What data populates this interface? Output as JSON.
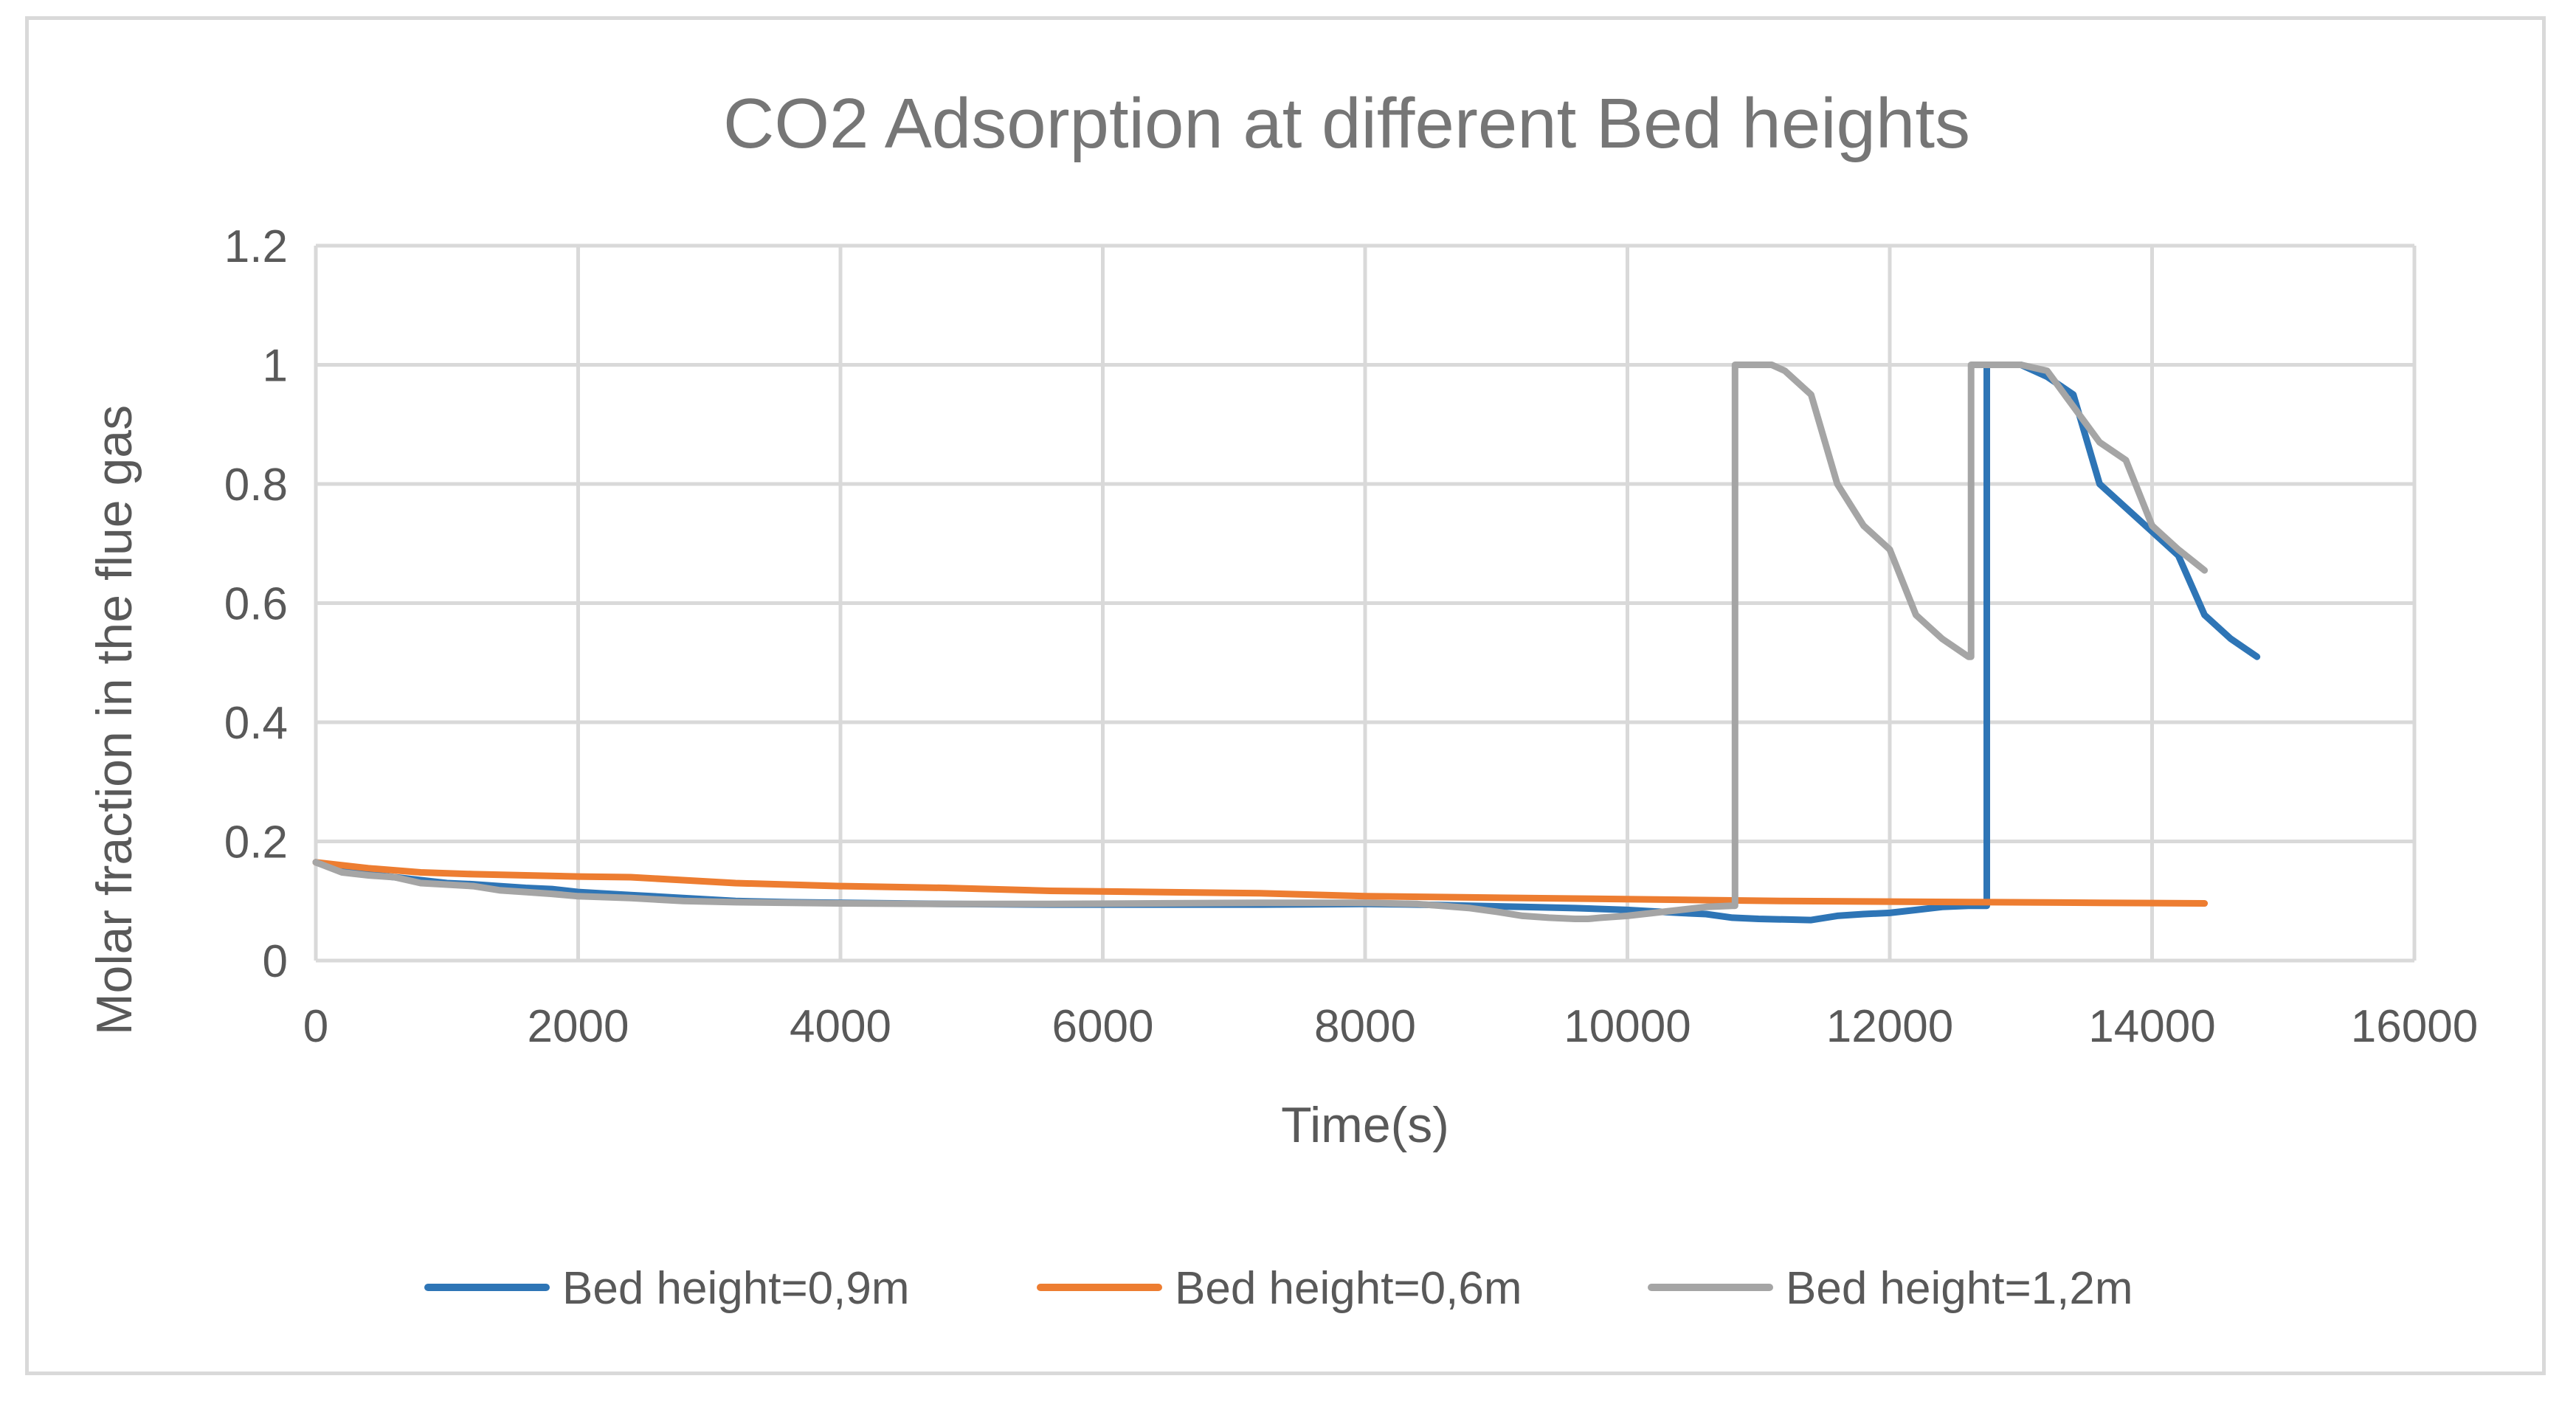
{
  "chart_data": {
    "type": "line",
    "title": "CO2 Adsorption at different Bed heights",
    "xlabel": "Time(s)",
    "ylabel": "Molar fraction in the flue gas",
    "xlim": [
      0,
      16000
    ],
    "ylim": [
      0,
      1.2
    ],
    "x_ticks": [
      "0",
      "2000",
      "4000",
      "6000",
      "8000",
      "10000",
      "12000",
      "14000",
      "16000"
    ],
    "y_ticks": [
      "0",
      "0.2",
      "0.4",
      "0.6",
      "0.8",
      "1",
      "1.2"
    ],
    "grid": true,
    "legend_position": "bottom",
    "series": [
      {
        "name": "Bed height=0,9m",
        "color": "#2e75b6",
        "x": [
          0,
          200,
          400,
          600,
          800,
          1000,
          1200,
          1400,
          1600,
          1800,
          2000,
          2400,
          2800,
          3200,
          3600,
          4000,
          4800,
          5600,
          6400,
          7200,
          8000,
          8400,
          8800,
          9200,
          9600,
          10000,
          10400,
          10600,
          10800,
          11000,
          11200,
          11400,
          11600,
          11800,
          12000,
          12200,
          12400,
          12600,
          12740,
          12740,
          12800,
          13000,
          13200,
          13400,
          13600,
          13800,
          14000,
          14200,
          14400,
          14600,
          14800
        ],
        "y": [
          0.165,
          0.15,
          0.145,
          0.14,
          0.135,
          0.13,
          0.128,
          0.125,
          0.122,
          0.12,
          0.115,
          0.11,
          0.105,
          0.1,
          0.098,
          0.097,
          0.095,
          0.094,
          0.094,
          0.094,
          0.095,
          0.094,
          0.092,
          0.09,
          0.088,
          0.085,
          0.08,
          0.078,
          0.072,
          0.07,
          0.069,
          0.068,
          0.075,
          0.078,
          0.08,
          0.085,
          0.09,
          0.092,
          0.092,
          1.0,
          1.0,
          1.0,
          0.98,
          0.95,
          0.8,
          0.76,
          0.72,
          0.68,
          0.58,
          0.54,
          0.51
        ]
      },
      {
        "name": "Bed height=0,6m",
        "color": "#ed7d31",
        "x": [
          0,
          400,
          800,
          1200,
          1600,
          2000,
          2400,
          2800,
          3200,
          4000,
          4800,
          5600,
          6400,
          7200,
          8000,
          8800,
          9600,
          10400,
          11200,
          12000,
          12800,
          13600,
          14400
        ],
        "y": [
          0.165,
          0.155,
          0.148,
          0.145,
          0.143,
          0.141,
          0.14,
          0.135,
          0.13,
          0.125,
          0.122,
          0.117,
          0.115,
          0.113,
          0.108,
          0.106,
          0.104,
          0.102,
          0.1,
          0.099,
          0.098,
          0.097,
          0.096
        ]
      },
      {
        "name": "Bed height=1,2m",
        "color": "#a5a5a5",
        "x": [
          0,
          200,
          400,
          600,
          800,
          1200,
          1400,
          1600,
          1800,
          2000,
          2400,
          2800,
          3200,
          4000,
          4800,
          5600,
          6400,
          7200,
          8000,
          8400,
          8800,
          9000,
          9200,
          9400,
          9600,
          9700,
          9800,
          10000,
          10200,
          10400,
          10600,
          10800,
          10820,
          10820,
          11000,
          11100,
          11200,
          11400,
          11600,
          11800,
          12000,
          12200,
          12400,
          12500,
          12600,
          12620,
          12620,
          12800,
          13000,
          13200,
          13400,
          13600,
          13800,
          14000,
          14200,
          14400
        ],
        "y": [
          0.165,
          0.148,
          0.143,
          0.14,
          0.13,
          0.125,
          0.118,
          0.115,
          0.112,
          0.108,
          0.105,
          0.1,
          0.098,
          0.096,
          0.095,
          0.095,
          0.096,
          0.097,
          0.097,
          0.095,
          0.088,
          0.082,
          0.075,
          0.072,
          0.07,
          0.07,
          0.072,
          0.075,
          0.08,
          0.085,
          0.09,
          0.092,
          0.092,
          1.0,
          1.0,
          1.0,
          0.99,
          0.95,
          0.8,
          0.73,
          0.69,
          0.58,
          0.54,
          0.525,
          0.51,
          0.51,
          1.0,
          1.0,
          1.0,
          0.99,
          0.93,
          0.87,
          0.84,
          0.73,
          0.69,
          0.655
        ]
      }
    ]
  }
}
